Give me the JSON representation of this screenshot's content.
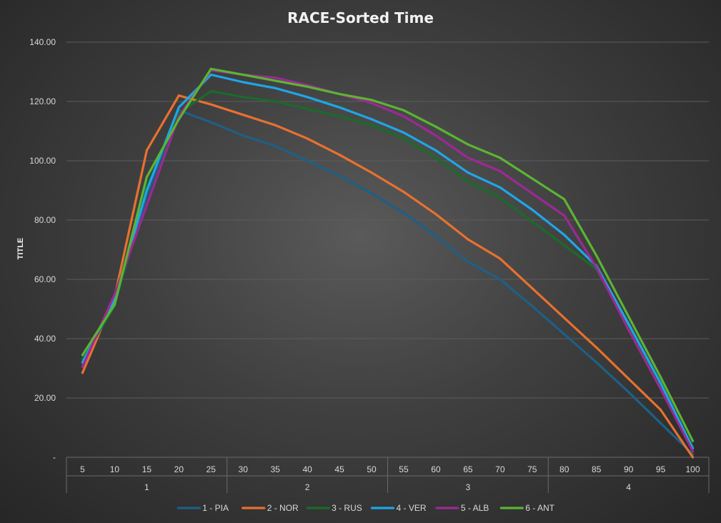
{
  "chart_data": {
    "type": "line",
    "title": "RACE-Sorted Time",
    "ylabel": "TITLE",
    "ylim": [
      0,
      140
    ],
    "yticks": [
      {
        "value": 0,
        "label": "-"
      },
      {
        "value": 20,
        "label": "20.00"
      },
      {
        "value": 40,
        "label": "40.00"
      },
      {
        "value": 60,
        "label": "60.00"
      },
      {
        "value": 80,
        "label": "80.00"
      },
      {
        "value": 100,
        "label": "100.00"
      },
      {
        "value": 120,
        "label": "120.00"
      },
      {
        "value": 140,
        "label": "140.00"
      }
    ],
    "x": [
      "5",
      "10",
      "15",
      "20",
      "25",
      "30",
      "35",
      "40",
      "45",
      "50",
      "55",
      "60",
      "65",
      "70",
      "75",
      "80",
      "85",
      "90",
      "95",
      "100"
    ],
    "groups": [
      {
        "label": "1",
        "count": 5
      },
      {
        "label": "2",
        "count": 5
      },
      {
        "label": "3",
        "count": 5
      },
      {
        "label": "4",
        "count": 5
      }
    ],
    "grid": true,
    "legend_position": "bottom",
    "series": [
      {
        "name": "1 - PIA",
        "color": "#1f5f85",
        "values": [
          31,
          52,
          88,
          117,
          113,
          108.5,
          105,
          100,
          95,
          89,
          82.5,
          74.5,
          66,
          60,
          51,
          41.5,
          32,
          22,
          11.5,
          1
        ]
      },
      {
        "name": "2 - NOR",
        "color": "#e8712e",
        "values": [
          28.5,
          54,
          103.5,
          122,
          119,
          115.5,
          112,
          107.5,
          102,
          96,
          89.5,
          82,
          73.5,
          67,
          57,
          47,
          37,
          26.5,
          16,
          0
        ]
      },
      {
        "name": "3 - RUS",
        "color": "#1a6b2a",
        "values": [
          33,
          51,
          91,
          116,
          123.5,
          121.5,
          120,
          117.5,
          115,
          112,
          107.5,
          101,
          93,
          87.5,
          79.5,
          71.5,
          63.5,
          44,
          24,
          3.5
        ]
      },
      {
        "name": "4 - VER",
        "color": "#1ea6e8",
        "values": [
          32,
          53,
          90,
          118,
          129,
          126.5,
          124.5,
          121.5,
          118,
          114,
          109.5,
          103.5,
          96,
          91,
          83.5,
          75,
          64.5,
          45,
          25,
          3
        ]
      },
      {
        "name": "5 - ALB",
        "color": "#9b2a94",
        "values": [
          30.5,
          55,
          85,
          115,
          130.5,
          129,
          128,
          125.5,
          122.5,
          119.5,
          115,
          108.5,
          101,
          96.5,
          89,
          81.5,
          64,
          43,
          23,
          2
        ]
      },
      {
        "name": "6 - ANT",
        "color": "#5bb532",
        "values": [
          34.5,
          51.5,
          94.5,
          114,
          131,
          129,
          127,
          125,
          122.5,
          120.5,
          117,
          111.5,
          105.5,
          101,
          94,
          87,
          68,
          47.5,
          27,
          5.5
        ]
      }
    ]
  }
}
